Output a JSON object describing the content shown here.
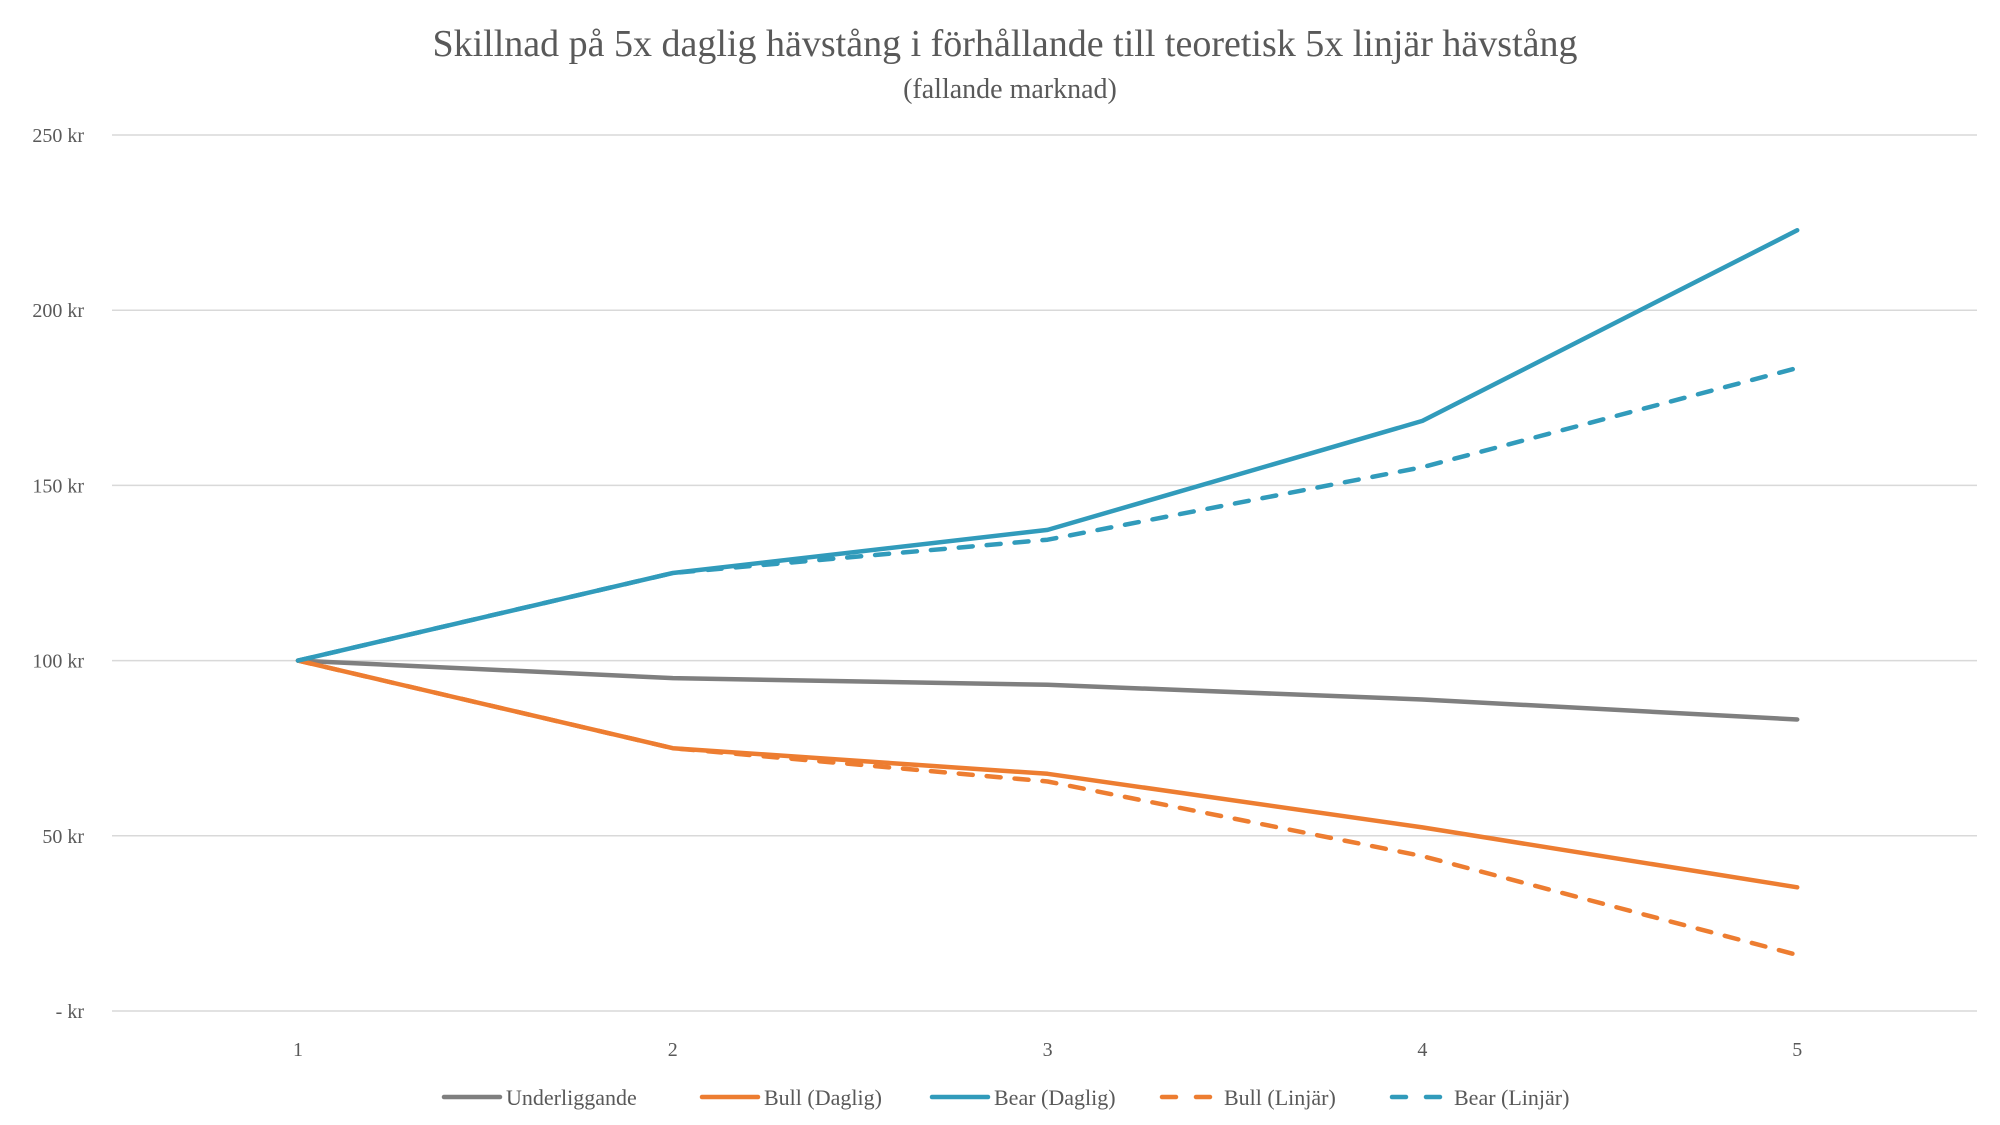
{
  "chart_data": {
    "type": "line",
    "title": "Skillnad på 5x daglig hävstång i förhållande till teoretisk 5x linjär hävstång",
    "subtitle": "(fallande marknad)",
    "xlabel": "",
    "ylabel": "",
    "categories": [
      "1",
      "2",
      "3",
      "4",
      "5"
    ],
    "ylim": [
      0,
      250
    ],
    "yticks": [
      0,
      50,
      100,
      150,
      200,
      250
    ],
    "ytick_labels": [
      "-  kr",
      "50 kr",
      "100 kr",
      "150 kr",
      "200 kr",
      "250 kr"
    ],
    "grid": true,
    "legend_position": "bottom",
    "series": [
      {
        "name": "Underliggande",
        "color": "#7f7f7f",
        "dash": "solid",
        "values": [
          100,
          95,
          93.1,
          88.9,
          83.2
        ]
      },
      {
        "name": "Bull (Daglig)",
        "color": "#ed7d31",
        "dash": "solid",
        "values": [
          100,
          75,
          67.7,
          52.4,
          35.3
        ]
      },
      {
        "name": "Bear (Daglig)",
        "color": "#319bbb",
        "dash": "solid",
        "values": [
          100,
          125,
          137.3,
          168.4,
          222.8
        ]
      },
      {
        "name": "Bull (Linjär)",
        "color": "#ed7d31",
        "dash": "dashed",
        "values": [
          100,
          75,
          65.5,
          44.2,
          16.0
        ]
      },
      {
        "name": "Bear (Linjär)",
        "color": "#319bbb",
        "dash": "dashed",
        "values": [
          100,
          125,
          134.5,
          155.2,
          183.5
        ]
      }
    ]
  }
}
